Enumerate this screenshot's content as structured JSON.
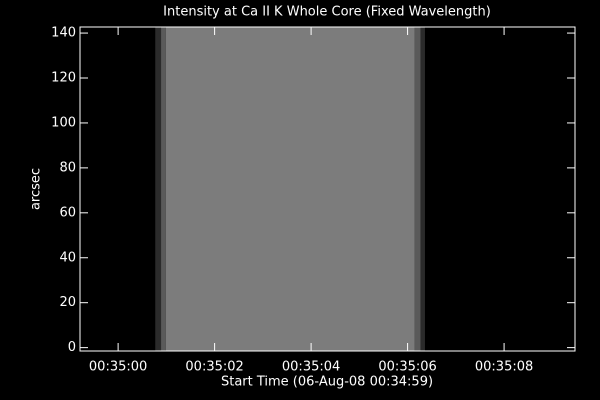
{
  "chart_data": {
    "type": "image",
    "title": "Intensity at Ca II K Whole Core (Fixed Wavelength)",
    "x_label": "Start Time (06-Aug-08 00:34:59)",
    "y_label": "arcsec",
    "xlim": [
      -0.79,
      9.47
    ],
    "xticks": [
      {
        "value": 0,
        "label": "00:35:00"
      },
      {
        "value": 2,
        "label": "00:35:02"
      },
      {
        "value": 4,
        "label": "00:35:04"
      },
      {
        "value": 6,
        "label": "00:35:06"
      },
      {
        "value": 8,
        "label": "00:35:08"
      }
    ],
    "ylim": [
      -1.5,
      142.7
    ],
    "yticks": [
      0,
      20,
      40,
      60,
      80,
      100,
      120,
      140
    ],
    "bands": [
      {
        "x": [
          0.77,
          0.89
        ],
        "color": "#2b2b2b"
      },
      {
        "x": [
          0.89,
          0.99
        ],
        "color": "#5a5a5a"
      },
      {
        "x": [
          0.99,
          6.15
        ],
        "color": "#7c7c7c"
      },
      {
        "x": [
          6.15,
          6.27
        ],
        "color": "#5a5a5a"
      },
      {
        "x": [
          6.27,
          6.36
        ],
        "color": "#2b2b2b"
      }
    ],
    "background": "#000000",
    "axis_color": "#ffffff"
  }
}
